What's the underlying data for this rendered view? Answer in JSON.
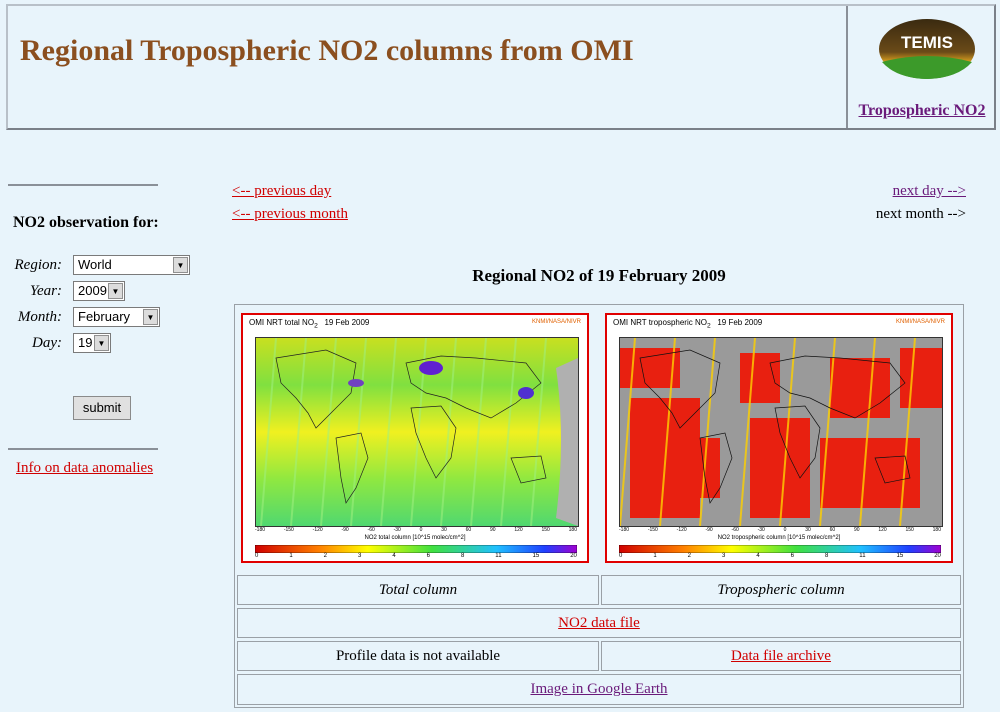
{
  "header": {
    "title": "Regional Tropospheric NO2 columns from OMI",
    "logo_text": "TEMIS",
    "logo_link": "Tropospheric NO2"
  },
  "sidebar": {
    "heading": "NO2 observation for:",
    "fields": {
      "region": {
        "label": "Region:",
        "value": "World"
      },
      "year": {
        "label": "Year:",
        "value": "2009"
      },
      "month": {
        "label": "Month:",
        "value": "February"
      },
      "day": {
        "label": "Day:",
        "value": "19"
      }
    },
    "submit_label": "submit",
    "info_link": "Info on data anomalies"
  },
  "nav": {
    "prev_day": "<-- previous day",
    "prev_month": "<-- previous month",
    "next_day": "next day -->",
    "next_month": "next month -->"
  },
  "regional_title": "Regional NO2 of 19 February 2009",
  "maps": {
    "total": {
      "header_title": "OMI NRT total NO",
      "header_sub": "2",
      "header_date": "19 Feb 2009",
      "credit": "KNMI/NASA/NIVR",
      "xlabel": "NO2 total column [10^15 molec/cm^2]"
    },
    "tropo": {
      "header_title": "OMI NRT tropospheric NO",
      "header_sub": "2",
      "header_date": "19 Feb 2009",
      "credit": "KNMI/NASA/NIVR",
      "xlabel": "NO2 tropospheric column [10^15 molec/cm^2]"
    },
    "lon_ticks": [
      "-180",
      "-150",
      "-120",
      "-90",
      "-60",
      "-30",
      "0",
      "30",
      "60",
      "90",
      "120",
      "150",
      "180"
    ],
    "colorbar_ticks": [
      "0",
      "1",
      "2",
      "3",
      "4",
      "6",
      "8",
      "11",
      "15",
      "20"
    ]
  },
  "table": {
    "total_caption": "Total column",
    "tropo_caption": "Tropospheric column",
    "data_file_link": "NO2 data file",
    "profile_text": "Profile data is not available",
    "archive_link": "Data file archive",
    "google_earth_link": "Image in Google Earth"
  },
  "colors": {
    "title": "#8b4f1f",
    "link": "#d00000",
    "visited": "#6a1a7a",
    "background": "#e8f4fb",
    "map_frame": "#e00000"
  }
}
